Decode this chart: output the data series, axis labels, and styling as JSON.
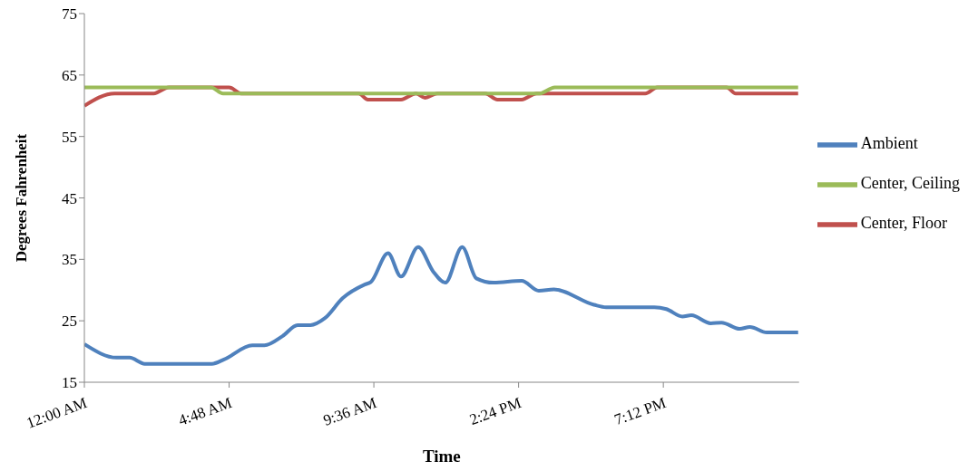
{
  "chart_data": {
    "type": "line",
    "xlabel": "Time",
    "ylabel": "Degrees Fahrenheit",
    "xlim": [
      0,
      23.7
    ],
    "xticks": [
      {
        "value": 0,
        "label": "12:00 AM"
      },
      {
        "value": 4.8,
        "label": "4:48 AM"
      },
      {
        "value": 9.6,
        "label": "9:36 AM"
      },
      {
        "value": 14.4,
        "label": "2:24 PM"
      },
      {
        "value": 19.2,
        "label": "7:12 PM"
      }
    ],
    "ylim": [
      15,
      75
    ],
    "yticks": [
      15,
      25,
      35,
      45,
      55,
      65,
      75
    ],
    "grid": false,
    "legend": "right",
    "marker": "none",
    "series": [
      {
        "name": "Ambient",
        "color": "#4f81bd",
        "x": [
          0,
          1.07,
          1.5,
          2,
          4.23,
          4.63,
          5.57,
          5.97,
          6.57,
          7.07,
          7.5,
          7.97,
          8.57,
          9.3,
          9.5,
          10.07,
          10.5,
          11.07,
          11.57,
          11.97,
          12.53,
          13,
          13.57,
          14.5,
          15.07,
          15.57,
          16.9,
          17.3,
          18.9,
          19.3,
          19.83,
          20.13,
          20.77,
          21.13,
          21.73,
          22.07,
          22.63,
          23.67
        ],
        "values": [
          21.2,
          19,
          19,
          18,
          18,
          18.7,
          21,
          21,
          22.5,
          24.3,
          24.3,
          25.4,
          28.7,
          30.9,
          31.3,
          36,
          32.2,
          37,
          33,
          31.2,
          37,
          31.9,
          31.2,
          31.5,
          29.9,
          30.1,
          27.6,
          27.2,
          27.2,
          26.9,
          25.7,
          25.9,
          24.6,
          24.7,
          23.7,
          24,
          23.1,
          23.1
        ]
      },
      {
        "name": "Center, Floor",
        "color": "#c0504d",
        "x": [
          0,
          1,
          2.3,
          2.8,
          4.8,
          5.2,
          9.1,
          9.4,
          10.5,
          11,
          11.3,
          11.7,
          13.3,
          13.7,
          14.5,
          15,
          18.6,
          19,
          21.3,
          21.6,
          23.67
        ],
        "values": [
          60,
          62,
          62,
          63,
          63,
          62,
          62,
          61,
          61,
          62,
          61.3,
          62,
          62,
          61,
          61,
          62,
          62,
          63,
          63,
          62,
          62
        ]
      },
      {
        "name": "Center, Ceiling",
        "color": "#9bbb59",
        "x": [
          0,
          4.2,
          4.6,
          15.1,
          15.6,
          23.67
        ],
        "values": [
          63,
          63,
          62,
          62,
          63,
          63
        ]
      }
    ]
  }
}
